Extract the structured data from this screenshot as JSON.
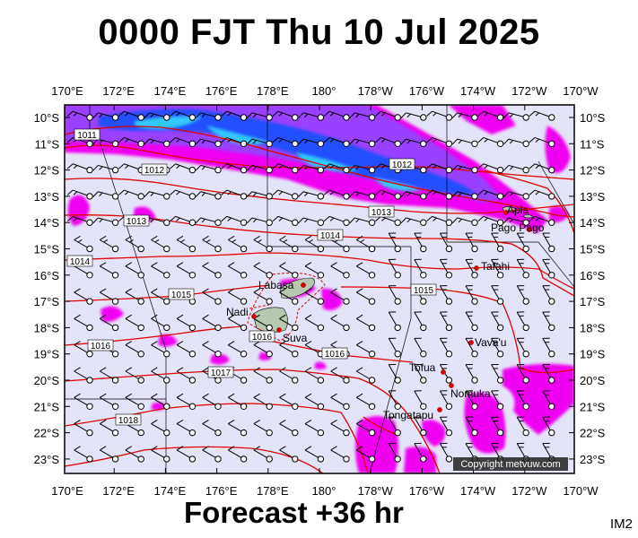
{
  "header": {
    "title": "0000 FJT Thu 10 Jul 2025"
  },
  "footer": {
    "forecast": "Forecast +36 hr",
    "code": "IM2"
  },
  "copyright": "Copyright metvuw.com",
  "axes": {
    "lon_labels": [
      "170°E",
      "172°E",
      "174°E",
      "176°E",
      "178°E",
      "180°",
      "178°W",
      "176°W",
      "174°W",
      "172°W",
      "170°W"
    ],
    "lat_labels": [
      "10°S",
      "11°S",
      "12°S",
      "13°S",
      "14°S",
      "15°S",
      "16°S",
      "17°S",
      "18°S",
      "19°S",
      "20°S",
      "21°S",
      "22°S",
      "23°S"
    ]
  },
  "isobars": [
    {
      "label": "1011"
    },
    {
      "label": "1012"
    },
    {
      "label": "1012"
    },
    {
      "label": "1013"
    },
    {
      "label": "1013"
    },
    {
      "label": "1014"
    },
    {
      "label": "1014"
    },
    {
      "label": "1015"
    },
    {
      "label": "1015"
    },
    {
      "label": "1016"
    },
    {
      "label": "1016"
    },
    {
      "label": "1016"
    },
    {
      "label": "1017"
    },
    {
      "label": "1018"
    }
  ],
  "places": [
    {
      "name": "Apia"
    },
    {
      "name": "Pago Pago"
    },
    {
      "name": "Tafahi"
    },
    {
      "name": "Labasa"
    },
    {
      "name": "Nadi"
    },
    {
      "name": "Suva"
    },
    {
      "name": "Vava'u"
    },
    {
      "name": "Tofua"
    },
    {
      "name": "Nomuka"
    },
    {
      "name": "Tongatapu"
    }
  ],
  "colors": {
    "background": "#e4e4f8",
    "rain_light": "#f000f0",
    "rain_mid": "#9a40ff",
    "rain_heavy": "#2050ff",
    "rain_extreme": "#30c8ff",
    "isobar": "#e00000",
    "land": "#b8c8b0"
  }
}
